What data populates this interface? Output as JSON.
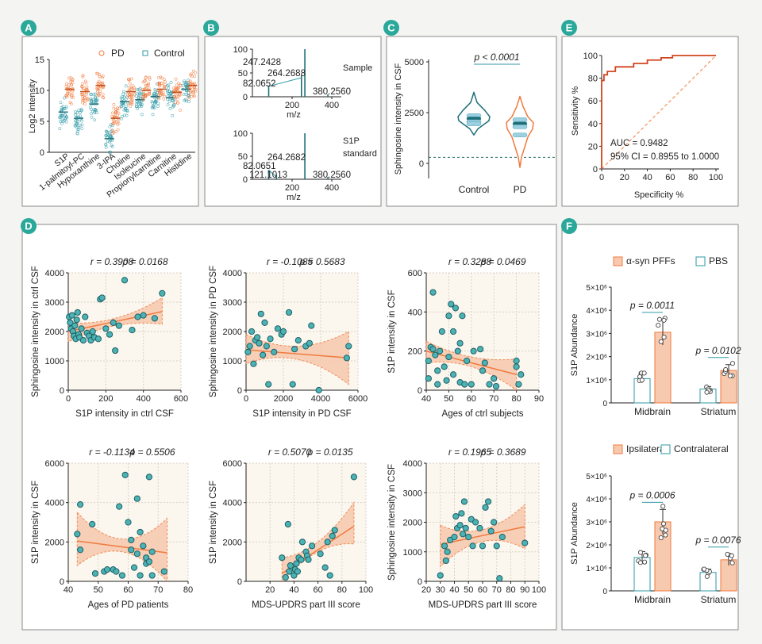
{
  "colors": {
    "orange": "#f07a3e",
    "teal": "#2f9aa6",
    "teal_dark": "#1f6f78",
    "band": "#f7c9ae",
    "panel_bg": "#fbf6ee",
    "frame": "#8a8a8a",
    "badge": "#2aa89a"
  },
  "panel_labels": [
    "A",
    "B",
    "C",
    "D",
    "E",
    "F"
  ],
  "chart_data": [
    {
      "id": "A",
      "type": "scatter",
      "ylabel": "Log2 intensity",
      "ylim": [
        0,
        15
      ],
      "yticks": [
        0,
        5,
        10,
        15
      ],
      "legend": [
        "PD",
        "Control"
      ],
      "categories": [
        "S1P",
        "1-palmitoyl-PC",
        "Hypoxanthine",
        "3-IPA",
        "Choline",
        "Isoleucine",
        "Propionylcarnitine",
        "Carnitine",
        "Histidine"
      ],
      "pd_means": [
        10.2,
        9.8,
        10.8,
        5.5,
        9.8,
        10.0,
        10.2,
        9.7,
        10.8
      ],
      "control_means": [
        6.5,
        5.5,
        7.8,
        2.2,
        8.2,
        8.5,
        9.0,
        8.8,
        10.2
      ]
    },
    {
      "id": "B",
      "type": "spectrum",
      "xlabel": "m/z",
      "xticks": [
        200,
        400
      ],
      "yticks": [
        0,
        50,
        100
      ],
      "spectra": [
        {
          "name": "Sample",
          "peaks": [
            [
              82.0652,
              22
            ],
            [
              247.2428,
              45
            ],
            [
              264.2688,
              100
            ],
            [
              380.256,
              5
            ]
          ]
        },
        {
          "name": "S1P standard",
          "peaks": [
            [
              82.0651,
              20
            ],
            [
              121.1013,
              10
            ],
            [
              264.2682,
              100
            ],
            [
              380.256,
              5
            ]
          ]
        }
      ]
    },
    {
      "id": "C",
      "type": "violin",
      "ylabel": "Sphingosine intensity in CSF",
      "yticks": [
        0,
        2500,
        5000
      ],
      "groups": [
        "Control",
        "PD"
      ],
      "pvalue": "p < 0.0001",
      "medians": [
        2150,
        1950
      ],
      "dashed_line": 300
    },
    {
      "id": "E",
      "type": "roc",
      "xlabel": "Specificity %",
      "ylabel": "Sensitivity %",
      "ticks": [
        0,
        20,
        40,
        60,
        80,
        100
      ],
      "auc": "AUC = 0.9482",
      "ci": "95% CI = 0.8955 to 1.0000",
      "curve": [
        [
          0,
          0
        ],
        [
          0,
          78
        ],
        [
          2,
          78
        ],
        [
          2,
          83
        ],
        [
          5,
          83
        ],
        [
          5,
          86
        ],
        [
          12,
          86
        ],
        [
          12,
          90
        ],
        [
          28,
          90
        ],
        [
          28,
          93
        ],
        [
          40,
          93
        ],
        [
          40,
          96
        ],
        [
          52,
          96
        ],
        [
          52,
          98
        ],
        [
          62,
          98
        ],
        [
          62,
          100
        ],
        [
          100,
          100
        ]
      ]
    },
    {
      "id": "D1",
      "type": "scatter",
      "xlabel": "S1P intensity in ctrl CSF",
      "ylabel": "Sphingosine intensity in ctrl CSF",
      "r": "r = 0.3908",
      "p": "p = 0.0168",
      "xlim": [
        0,
        600
      ],
      "ylim": [
        0,
        4000
      ],
      "xticks": [
        0,
        200,
        400,
        600
      ],
      "yticks": [
        0,
        1000,
        2000,
        3000,
        4000
      ],
      "fit": [
        [
          0,
          2000
        ],
        [
          500,
          2680
        ]
      ],
      "band": [
        [
          0,
          1650,
          2300
        ],
        [
          250,
          2200,
          2450
        ],
        [
          500,
          2250,
          3150
        ]
      ],
      "points": [
        [
          5,
          2500
        ],
        [
          10,
          2300
        ],
        [
          15,
          2100
        ],
        [
          20,
          2550
        ],
        [
          25,
          2000
        ],
        [
          30,
          1850
        ],
        [
          35,
          2200
        ],
        [
          40,
          1750
        ],
        [
          45,
          2400
        ],
        [
          50,
          2650
        ],
        [
          55,
          1900
        ],
        [
          60,
          1800
        ],
        [
          70,
          2100
        ],
        [
          80,
          1700
        ],
        [
          90,
          2500
        ],
        [
          100,
          1950
        ],
        [
          110,
          1850
        ],
        [
          120,
          1700
        ],
        [
          130,
          2000
        ],
        [
          140,
          1800
        ],
        [
          160,
          1750
        ],
        [
          170,
          3100
        ],
        [
          180,
          3150
        ],
        [
          200,
          2100
        ],
        [
          220,
          1900
        ],
        [
          240,
          2300
        ],
        [
          250,
          1350
        ],
        [
          270,
          2200
        ],
        [
          300,
          3750
        ],
        [
          340,
          2050
        ],
        [
          370,
          2500
        ],
        [
          400,
          2550
        ],
        [
          460,
          2450
        ],
        [
          500,
          3300
        ]
      ]
    },
    {
      "id": "D2",
      "type": "scatter",
      "xlabel": "S1P intensity in PD CSF",
      "ylabel": "Sphingosine intensity in PD CSF",
      "r": "r = -0.1085",
      "p": "p = 0.5683",
      "xlim": [
        0,
        6000
      ],
      "ylim": [
        0,
        4000
      ],
      "xticks": [
        0,
        2000,
        4000,
        6000
      ],
      "yticks": [
        0,
        1000,
        2000,
        3000,
        4000
      ],
      "fit": [
        [
          0,
          1380
        ],
        [
          5500,
          1100
        ]
      ],
      "band": [
        [
          0,
          900,
          1900
        ],
        [
          2750,
          1050,
          1500
        ],
        [
          5500,
          200,
          2000
        ]
      ],
      "points": [
        [
          100,
          1300
        ],
        [
          200,
          1500
        ],
        [
          300,
          2000
        ],
        [
          400,
          900
        ],
        [
          500,
          1700
        ],
        [
          600,
          1800
        ],
        [
          700,
          1600
        ],
        [
          800,
          2600
        ],
        [
          900,
          1200
        ],
        [
          1000,
          2300
        ],
        [
          1100,
          1500
        ],
        [
          1200,
          200
        ],
        [
          1300,
          1750
        ],
        [
          1500,
          1300
        ],
        [
          1700,
          2100
        ],
        [
          1900,
          1900
        ],
        [
          2000,
          2000
        ],
        [
          2300,
          2650
        ],
        [
          2500,
          200
        ],
        [
          2600,
          1400
        ],
        [
          2800,
          1700
        ],
        [
          3200,
          1500
        ],
        [
          3400,
          1600
        ],
        [
          3500,
          2200
        ],
        [
          3900,
          0
        ],
        [
          5400,
          1100
        ],
        [
          5500,
          1500
        ]
      ]
    },
    {
      "id": "D3",
      "type": "scatter",
      "xlabel": "Ages of ctrl subjects",
      "ylabel": "S1P intensity in CSF",
      "r": "r = 0.3288",
      "p": "p = 0.0469",
      "xlim": [
        40,
        90
      ],
      "ylim": [
        0,
        600
      ],
      "xticks": [
        40,
        50,
        60,
        70,
        80,
        90
      ],
      "yticks": [
        0,
        200,
        400,
        600
      ],
      "fit": [
        [
          40,
          200
        ],
        [
          80,
          80
        ]
      ],
      "band": [
        [
          40,
          140,
          250
        ],
        [
          60,
          120,
          170
        ],
        [
          80,
          0,
          160
        ]
      ],
      "points": [
        [
          41,
          150
        ],
        [
          41,
          60
        ],
        [
          42,
          220
        ],
        [
          43,
          210
        ],
        [
          43,
          500
        ],
        [
          44,
          180
        ],
        [
          45,
          30
        ],
        [
          45,
          100
        ],
        [
          46,
          200
        ],
        [
          47,
          300
        ],
        [
          48,
          120
        ],
        [
          49,
          50
        ],
        [
          50,
          380
        ],
        [
          50,
          170
        ],
        [
          51,
          440
        ],
        [
          52,
          80
        ],
        [
          52,
          300
        ],
        [
          53,
          420
        ],
        [
          54,
          200
        ],
        [
          55,
          40
        ],
        [
          55,
          240
        ],
        [
          56,
          380
        ],
        [
          57,
          30
        ],
        [
          58,
          150
        ],
        [
          60,
          30
        ],
        [
          61,
          200
        ],
        [
          64,
          210
        ],
        [
          65,
          100
        ],
        [
          66,
          140
        ],
        [
          68,
          30
        ],
        [
          70,
          60
        ],
        [
          71,
          20
        ],
        [
          80,
          150
        ],
        [
          80,
          120
        ],
        [
          81,
          30
        ],
        [
          82,
          80
        ]
      ]
    },
    {
      "id": "D4",
      "type": "scatter",
      "xlabel": "Ages of PD patients",
      "ylabel": "S1P intensity in CSF",
      "r": "r = -0.1134",
      "p": "p = 0.5506",
      "xlim": [
        40,
        80
      ],
      "ylim": [
        0,
        6000
      ],
      "xticks": [
        40,
        50,
        60,
        70,
        80
      ],
      "yticks": [
        0,
        2000,
        4000,
        6000
      ],
      "fit": [
        [
          43,
          2050
        ],
        [
          73,
          1450
        ]
      ],
      "band": [
        [
          43,
          800,
          3500
        ],
        [
          58,
          1500,
          2150
        ],
        [
          73,
          0,
          3200
        ]
      ],
      "points": [
        [
          43,
          2400
        ],
        [
          44,
          1600
        ],
        [
          44,
          3900
        ],
        [
          48,
          2900
        ],
        [
          49,
          400
        ],
        [
          52,
          500
        ],
        [
          53,
          600
        ],
        [
          55,
          600
        ],
        [
          56,
          500
        ],
        [
          57,
          3800
        ],
        [
          58,
          300
        ],
        [
          59,
          5400
        ],
        [
          60,
          3000
        ],
        [
          61,
          1600
        ],
        [
          61,
          2100
        ],
        [
          62,
          700
        ],
        [
          63,
          4200
        ],
        [
          63,
          1400
        ],
        [
          64,
          2500
        ],
        [
          64,
          300
        ],
        [
          65,
          1800
        ],
        [
          66,
          1200
        ],
        [
          66,
          900
        ],
        [
          67,
          5300
        ],
        [
          67,
          1000
        ],
        [
          68,
          1500
        ],
        [
          68,
          300
        ],
        [
          72,
          500
        ]
      ]
    },
    {
      "id": "D5",
      "type": "scatter",
      "xlabel": "MDS-UPDRS part III score",
      "ylabel": "S1P intensity in CSF",
      "r": "r = 0.5070",
      "p": "p = 0.0135",
      "xlim": [
        0,
        100
      ],
      "ylim": [
        0,
        6000
      ],
      "xticks": [
        20,
        40,
        60,
        80,
        100
      ],
      "yticks": [
        0,
        2000,
        4000,
        6000
      ],
      "fit": [
        [
          30,
          400
        ],
        [
          90,
          2800
        ]
      ],
      "band": [
        [
          30,
          0,
          1200
        ],
        [
          60,
          1500,
          2000
        ],
        [
          90,
          1900,
          4000
        ]
      ],
      "points": [
        [
          30,
          1200
        ],
        [
          33,
          200
        ],
        [
          35,
          2900
        ],
        [
          36,
          500
        ],
        [
          37,
          800
        ],
        [
          40,
          300
        ],
        [
          41,
          600
        ],
        [
          42,
          900
        ],
        [
          43,
          500
        ],
        [
          44,
          1200
        ],
        [
          46,
          1100
        ],
        [
          47,
          2000
        ],
        [
          50,
          1500
        ],
        [
          51,
          1300
        ],
        [
          52,
          1100
        ],
        [
          55,
          1800
        ],
        [
          62,
          1400
        ],
        [
          66,
          700
        ],
        [
          68,
          2000
        ],
        [
          70,
          300
        ],
        [
          72,
          2300
        ],
        [
          74,
          2600
        ],
        [
          90,
          5300
        ]
      ]
    },
    {
      "id": "D6",
      "type": "scatter",
      "xlabel": "MDS-UPDRS part III score",
      "ylabel": "Sphingosine intensity in CSF",
      "r": "r = 0.1965",
      "p": "p = 0.3689",
      "xlim": [
        20,
        100
      ],
      "ylim": [
        0,
        4000
      ],
      "xticks": [
        20,
        30,
        40,
        50,
        60,
        70,
        80,
        90,
        100
      ],
      "yticks": [
        0,
        1000,
        2000,
        3000,
        4000
      ],
      "fit": [
        [
          30,
          1250
        ],
        [
          90,
          1850
        ]
      ],
      "band": [
        [
          30,
          500,
          1900
        ],
        [
          60,
          1350,
          1750
        ],
        [
          90,
          1100,
          2600
        ]
      ],
      "points": [
        [
          30,
          200
        ],
        [
          33,
          1200
        ],
        [
          34,
          700
        ],
        [
          35,
          1000
        ],
        [
          37,
          1400
        ],
        [
          40,
          1500
        ],
        [
          41,
          2200
        ],
        [
          42,
          1800
        ],
        [
          44,
          1900
        ],
        [
          45,
          2300
        ],
        [
          46,
          1600
        ],
        [
          47,
          2700
        ],
        [
          48,
          1800
        ],
        [
          50,
          1500
        ],
        [
          52,
          2100
        ],
        [
          53,
          1200
        ],
        [
          55,
          2000
        ],
        [
          58,
          1800
        ],
        [
          60,
          1200
        ],
        [
          62,
          2500
        ],
        [
          64,
          2700
        ],
        [
          66,
          1700
        ],
        [
          68,
          2000
        ],
        [
          70,
          1200
        ],
        [
          72,
          100
        ],
        [
          74,
          1500
        ],
        [
          90,
          1300
        ]
      ]
    },
    {
      "id": "F1",
      "type": "bar",
      "ylabel": "S1P Abundance",
      "legend": [
        "α-syn PFFs",
        "PBS"
      ],
      "categories": [
        "Midbrain",
        "Striatum"
      ],
      "series": [
        {
          "name": "PBS",
          "values": [
            1.05,
            0.6
          ]
        },
        {
          "name": "α-syn PFFs",
          "values": [
            3.05,
            1.4
          ]
        }
      ],
      "ylim": [
        0,
        5
      ],
      "yticks": [
        "0",
        "1×10⁶",
        "2×10⁶",
        "3×10⁶",
        "4×10⁶",
        "5×10⁶"
      ],
      "pvalues": [
        "p = 0.0011",
        "p = 0.0102"
      ]
    },
    {
      "id": "F2",
      "type": "bar",
      "ylabel": "S1P Abundance",
      "legend": [
        "Ipsilateral",
        "Contralateral"
      ],
      "categories": [
        "Midbrain",
        "Striatum"
      ],
      "series": [
        {
          "name": "Contralateral",
          "values": [
            1.45,
            0.8
          ]
        },
        {
          "name": "Ipsilateral",
          "values": [
            3.0,
            1.35
          ]
        }
      ],
      "ylim": [
        0,
        5
      ],
      "yticks": [
        "0",
        "1×10⁶",
        "2×10⁶",
        "3×10⁶",
        "4×10⁶",
        "5×10⁶"
      ],
      "pvalues": [
        "p = 0.0006",
        "p = 0.0076"
      ]
    }
  ]
}
